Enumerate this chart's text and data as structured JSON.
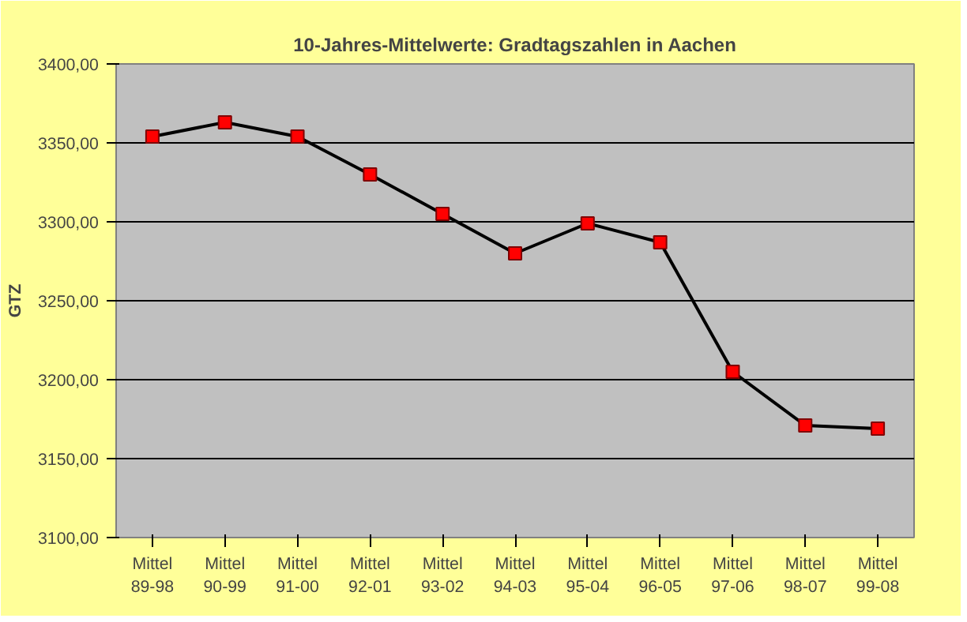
{
  "chart_data": {
    "type": "line",
    "title": "10-Jahres-Mittelwerte: Gradtagszahlen in Aachen",
    "ylabel": "GTZ",
    "categories": [
      "Mittel\n89-98",
      "Mittel\n90-99",
      "Mittel\n91-00",
      "Mittel\n92-01",
      "Mittel\n93-02",
      "Mittel\n94-03",
      "Mittel\n95-04",
      "Mittel\n96-05",
      "Mittel\n97-06",
      "Mittel\n98-07",
      "Mittel\n99-08"
    ],
    "series": [
      {
        "color": "#000000",
        "colors": [
          "#ff0000",
          "#ff0000",
          "#ff0000",
          "#ff0000",
          "#ff0000",
          "#ff0000",
          "#ff0000",
          "#ff0000",
          "#ff0000",
          "#ff0000",
          "#ff0000"
        ],
        "values": [
          3354,
          3363,
          3354,
          3330,
          3305,
          3280,
          3299,
          3287,
          3205,
          3171,
          3169
        ]
      }
    ],
    "ylim": [
      3100,
      3400
    ],
    "yticks": [
      {
        "value": 3100,
        "label": "3100,00"
      },
      {
        "value": 3150,
        "label": "3150,00"
      },
      {
        "value": 3200,
        "label": "3200,00"
      },
      {
        "value": 3250,
        "label": "3250,00"
      },
      {
        "value": 3300,
        "label": "3300,00"
      },
      {
        "value": 3350,
        "label": "3350,00"
      },
      {
        "value": 3400,
        "label": "3400,00"
      }
    ],
    "grid": "y",
    "marker": "square",
    "line_style": "solid"
  }
}
